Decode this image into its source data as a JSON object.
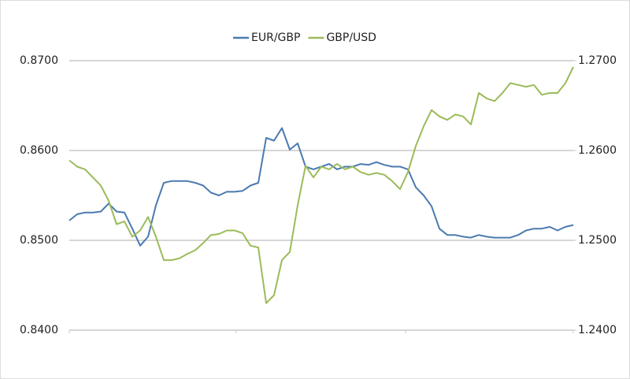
{
  "chart_data": {
    "type": "line",
    "categories": [
      null,
      null,
      null,
      null,
      null,
      null,
      null,
      null,
      null,
      null,
      null,
      null,
      null,
      null,
      null,
      null,
      null,
      null,
      null,
      null,
      null,
      null,
      null,
      null,
      null,
      null,
      null,
      null,
      null,
      null,
      null,
      null,
      null,
      null,
      null,
      null,
      null,
      null,
      null,
      null,
      null,
      null,
      null,
      null,
      null,
      null,
      null,
      null,
      null,
      null,
      null,
      null,
      null,
      null,
      null,
      null,
      null,
      null,
      null,
      null,
      null,
      null,
      null,
      null,
      null
    ],
    "series": [
      {
        "name": "EUR/GBP",
        "color": "#4a7ab0",
        "values": [
          0.8522,
          0.8529,
          0.8531,
          0.8531,
          0.8532,
          0.8541,
          0.8532,
          0.8531,
          0.8513,
          0.8494,
          0.8504,
          0.8539,
          0.8564,
          0.8566,
          0.8566,
          0.8566,
          0.8564,
          0.8561,
          0.8553,
          0.855,
          0.8554,
          0.8554,
          0.8555,
          0.8561,
          0.8564,
          0.8614,
          0.8611,
          0.8625,
          0.8601,
          0.8608,
          0.8582,
          0.8579,
          0.8582,
          0.8585,
          0.8579,
          0.8582,
          0.8582,
          0.8585,
          0.8584,
          0.8587,
          0.8584,
          0.8582,
          0.8582,
          0.8579,
          0.8559,
          0.855,
          0.8538,
          0.8513,
          0.8506,
          0.8506,
          0.8504,
          0.8503,
          0.8506,
          0.8504,
          0.8503,
          0.8503,
          0.8503,
          0.8506,
          0.8511,
          0.8513,
          0.8513,
          0.8515,
          0.8511,
          0.8515,
          0.8517
        ]
      },
      {
        "name": "GBP/USD",
        "color": "#9bbb59",
        "axis": "y2",
        "values": [
          1.2589,
          1.2582,
          1.2579,
          1.257,
          1.2561,
          1.2544,
          1.2518,
          1.2521,
          1.2504,
          1.2511,
          1.2526,
          1.2504,
          1.2478,
          1.2478,
          1.248,
          1.2485,
          1.2489,
          1.2497,
          1.2506,
          1.2507,
          1.2511,
          1.2511,
          1.2508,
          1.2494,
          1.2492,
          1.243,
          1.2439,
          1.2478,
          1.2487,
          1.2539,
          1.2583,
          1.257,
          1.2582,
          1.2579,
          1.2585,
          1.2579,
          1.2582,
          1.2576,
          1.2573,
          1.2575,
          1.2573,
          1.2566,
          1.2557,
          1.2576,
          1.2605,
          1.2627,
          1.2645,
          1.2638,
          1.2634,
          1.264,
          1.2638,
          1.2629,
          1.2664,
          1.2658,
          1.2655,
          1.2664,
          1.2675,
          1.2673,
          1.2671,
          1.2673,
          1.2662,
          1.2664,
          1.2664,
          1.2675,
          1.2693
        ]
      }
    ],
    "ylim": [
      0.84,
      0.87
    ],
    "yticks": [
      {
        "value": 0.84,
        "label": "0.8400"
      },
      {
        "value": 0.85,
        "label": "0.8500"
      },
      {
        "value": 0.86,
        "label": "0.8600"
      },
      {
        "value": 0.87,
        "label": "0.8700"
      }
    ],
    "y2lim": [
      1.24,
      1.27
    ],
    "y2ticks": [
      {
        "value": 1.24,
        "label": "1.2400"
      },
      {
        "value": 1.25,
        "label": "1.2500"
      },
      {
        "value": 1.26,
        "label": "1.2600"
      },
      {
        "value": 1.27,
        "label": "1.2700"
      }
    ],
    "grid": true,
    "legend": "top"
  }
}
